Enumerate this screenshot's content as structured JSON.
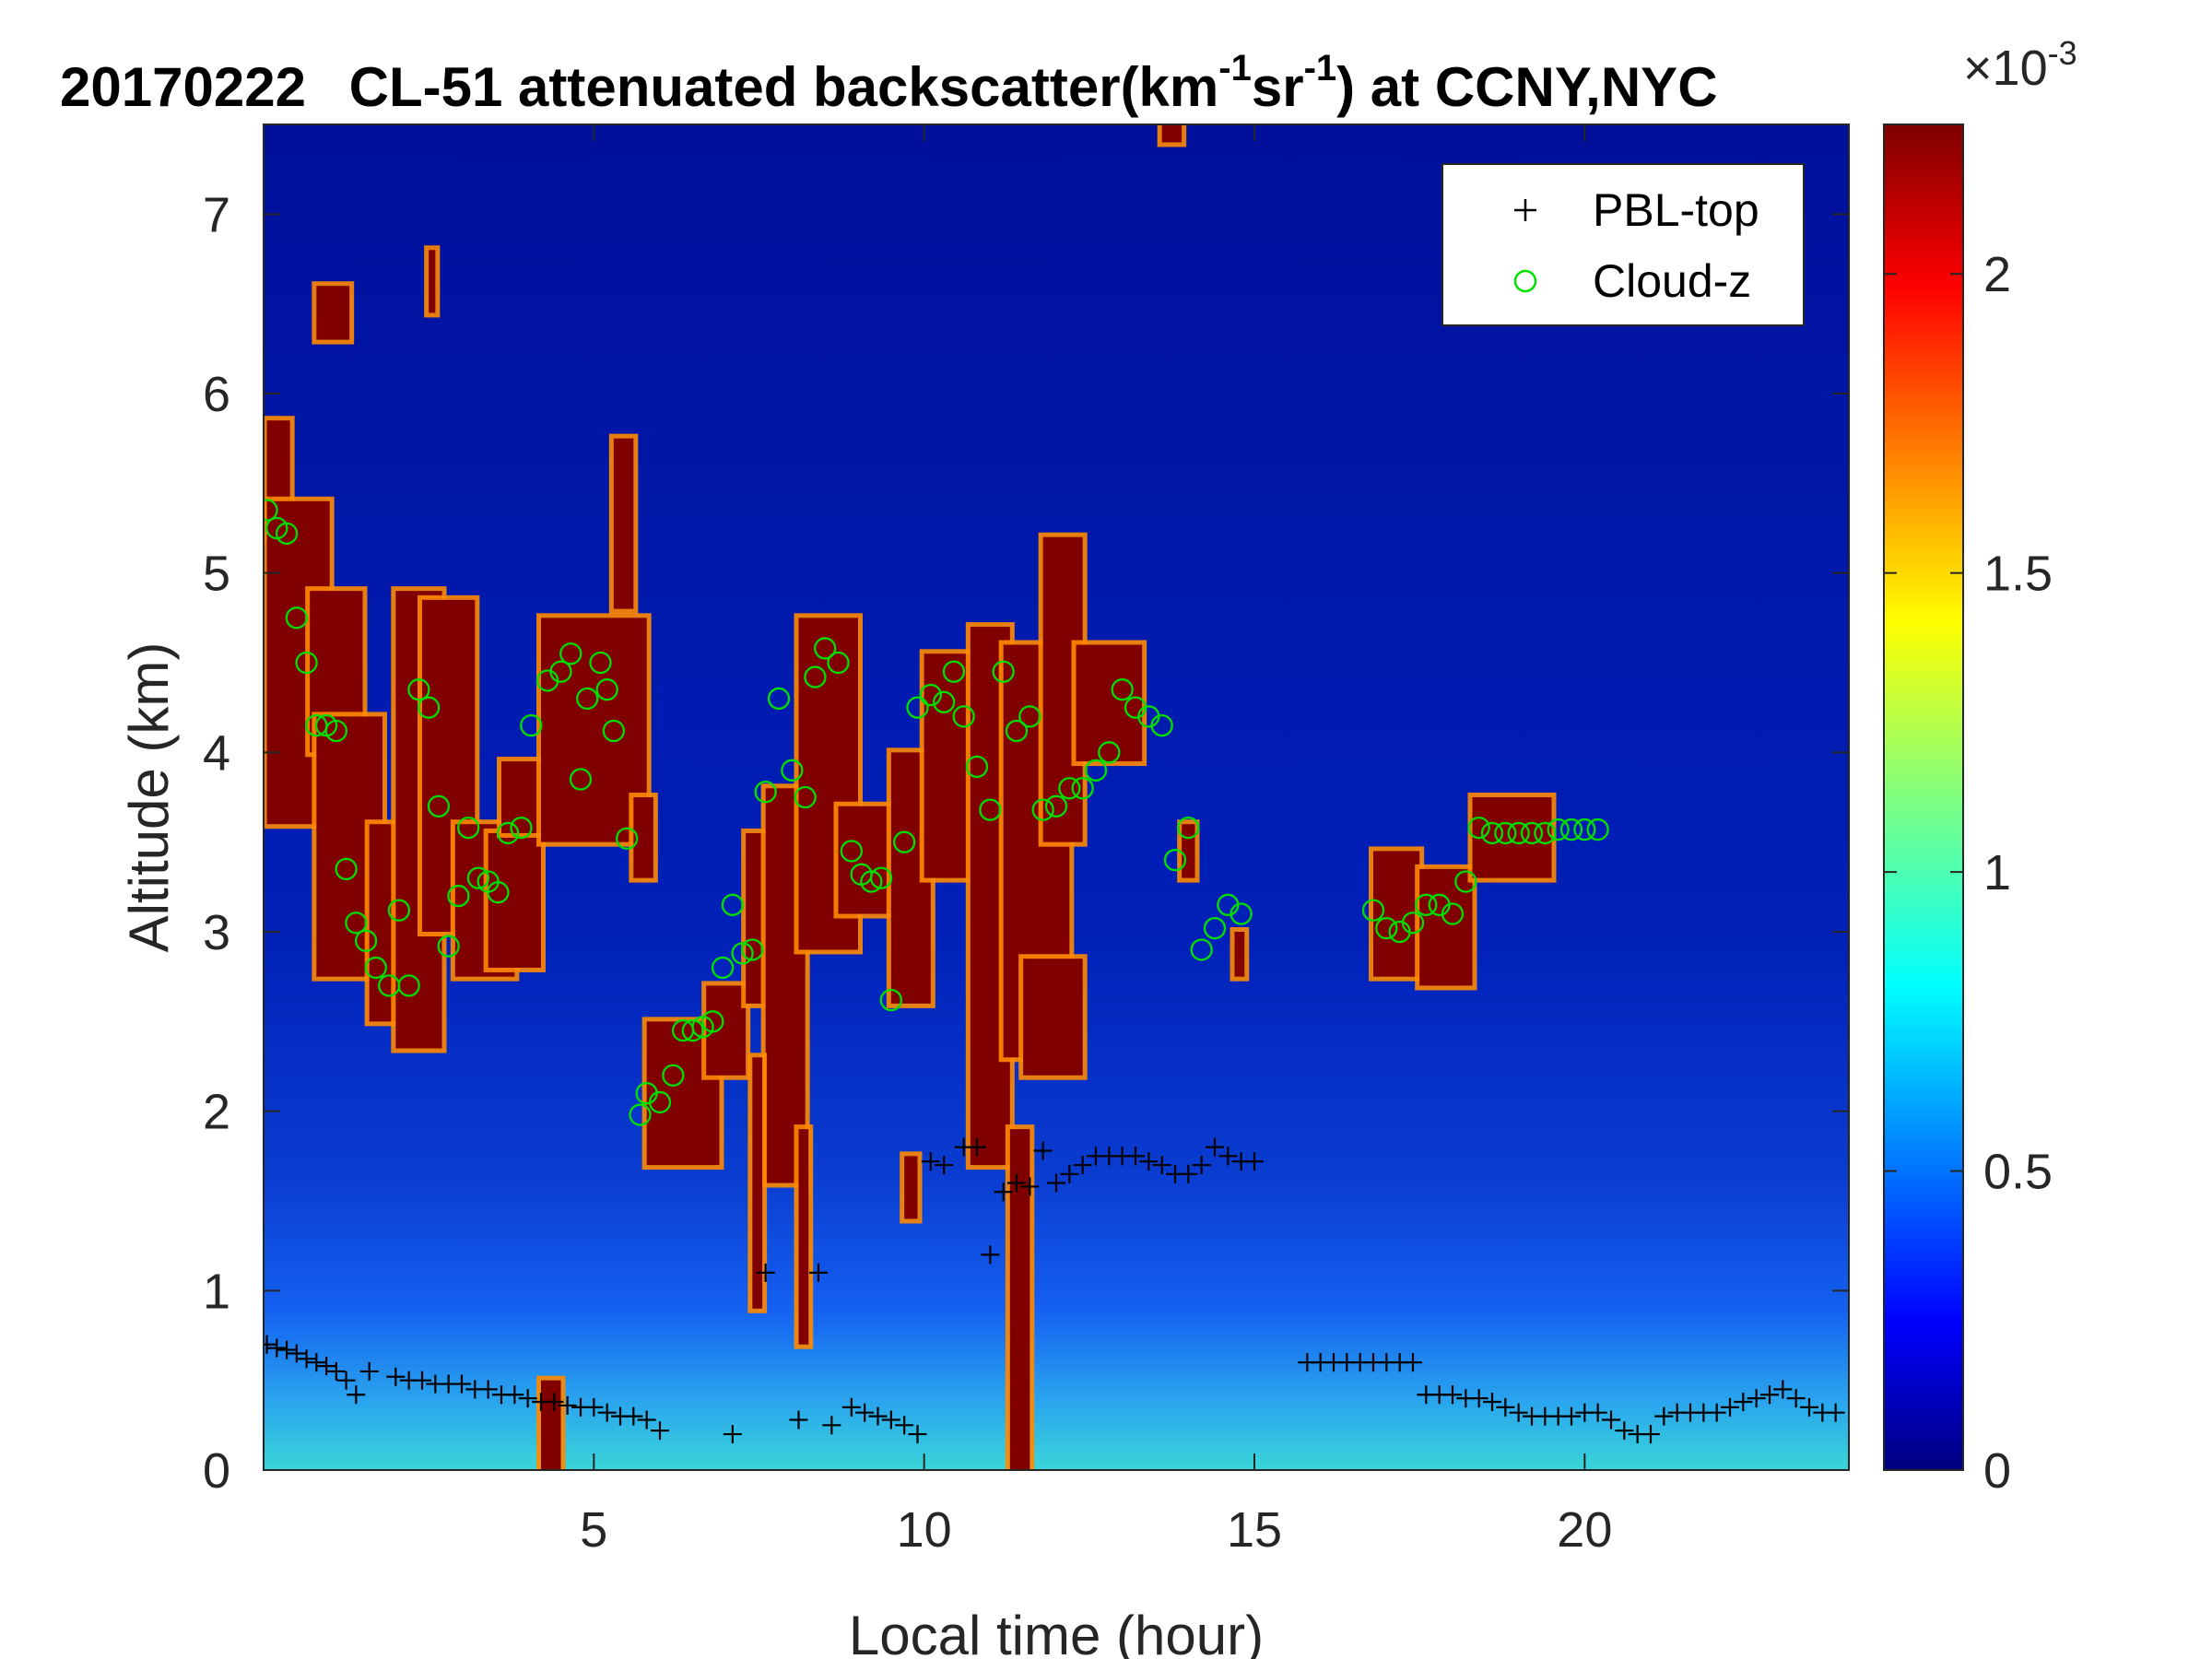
{
  "chart_data": {
    "type": "heatmap",
    "title": {
      "date": "20170222",
      "main": "CL-51 attenuated backscatter(km",
      "sup1": "-1",
      "mid": "sr",
      "sup2": "-1",
      "end": ") at CCNY,NYC"
    },
    "xlabel": "Local time (hour)",
    "ylabel": "Altitude (km)",
    "xlim": [
      0,
      24
    ],
    "ylim": [
      0,
      7.5
    ],
    "xticks": [
      "5",
      "10",
      "15",
      "20"
    ],
    "yticks": [
      "0",
      "1",
      "2",
      "3",
      "4",
      "5",
      "6",
      "7"
    ],
    "colorbar": {
      "min": 0,
      "max": 0.00225,
      "ticks": [
        "0",
        "0.5",
        "1",
        "1.5",
        "2"
      ],
      "exponent_label": "×10",
      "exponent": "-3",
      "colormap": "jet"
    },
    "legend": {
      "position": "top-right",
      "items": [
        {
          "label": "PBL-top",
          "marker": "+",
          "color": "#000000"
        },
        {
          "label": "Cloud-z",
          "marker": "o",
          "color": "#00e000"
        }
      ]
    },
    "cloud_blocks": [
      {
        "x0": 0.05,
        "x1": 0.4,
        "y0": 5.2,
        "y1": 5.85
      },
      {
        "x0": 0.05,
        "x1": 1.0,
        "y0": 3.6,
        "y1": 5.4
      },
      {
        "x0": 0.7,
        "x1": 1.5,
        "y0": 4.0,
        "y1": 4.9
      },
      {
        "x0": 0.8,
        "x1": 1.8,
        "y0": 2.75,
        "y1": 4.2
      },
      {
        "x0": 0.8,
        "x1": 1.3,
        "y0": 6.3,
        "y1": 6.6
      },
      {
        "x0": 1.6,
        "x1": 2.3,
        "y0": 2.5,
        "y1": 3.6
      },
      {
        "x0": 2.0,
        "x1": 2.7,
        "y0": 2.35,
        "y1": 4.9
      },
      {
        "x0": 2.4,
        "x1": 3.2,
        "y0": 3.0,
        "y1": 4.85
      },
      {
        "x0": 2.5,
        "x1": 2.6,
        "y0": 6.45,
        "y1": 6.8
      },
      {
        "x0": 2.9,
        "x1": 3.8,
        "y0": 2.75,
        "y1": 3.6
      },
      {
        "x0": 3.4,
        "x1": 4.2,
        "y0": 2.8,
        "y1": 3.55
      },
      {
        "x0": 3.6,
        "x1": 4.2,
        "y0": 3.55,
        "y1": 3.95
      },
      {
        "x0": 4.2,
        "x1": 4.5,
        "y0": 0.0,
        "y1": 0.5
      },
      {
        "x0": 4.2,
        "x1": 5.8,
        "y0": 3.5,
        "y1": 4.75
      },
      {
        "x0": 5.3,
        "x1": 5.6,
        "y0": 4.8,
        "y1": 5.75
      },
      {
        "x0": 5.6,
        "x1": 5.9,
        "y0": 3.3,
        "y1": 3.75
      },
      {
        "x0": 5.8,
        "x1": 6.9,
        "y0": 1.7,
        "y1": 2.5
      },
      {
        "x0": 6.7,
        "x1": 7.3,
        "y0": 2.2,
        "y1": 2.7
      },
      {
        "x0": 7.3,
        "x1": 7.7,
        "y0": 2.6,
        "y1": 3.55
      },
      {
        "x0": 7.6,
        "x1": 8.2,
        "y0": 1.6,
        "y1": 3.8
      },
      {
        "x0": 8.1,
        "x1": 9.0,
        "y0": 2.9,
        "y1": 4.75
      },
      {
        "x0": 8.7,
        "x1": 9.6,
        "y0": 3.1,
        "y1": 3.7
      },
      {
        "x0": 9.5,
        "x1": 10.1,
        "y0": 2.6,
        "y1": 4.0
      },
      {
        "x0": 10.0,
        "x1": 10.7,
        "y0": 3.3,
        "y1": 4.55
      },
      {
        "x0": 10.7,
        "x1": 11.3,
        "y0": 1.7,
        "y1": 4.7
      },
      {
        "x0": 11.2,
        "x1": 12.2,
        "y0": 2.3,
        "y1": 4.6
      },
      {
        "x0": 11.8,
        "x1": 12.4,
        "y0": 3.5,
        "y1": 5.2
      },
      {
        "x0": 12.3,
        "x1": 13.3,
        "y0": 3.95,
        "y1": 4.6
      },
      {
        "x0": 11.5,
        "x1": 12.4,
        "y0": 2.2,
        "y1": 2.85
      },
      {
        "x0": 9.7,
        "x1": 9.9,
        "y0": 1.4,
        "y1": 1.75
      },
      {
        "x0": 11.3,
        "x1": 11.6,
        "y0": 0.0,
        "y1": 1.9
      },
      {
        "x0": 7.4,
        "x1": 7.55,
        "y0": 0.9,
        "y1": 2.3
      },
      {
        "x0": 8.1,
        "x1": 8.25,
        "y0": 0.7,
        "y1": 1.9
      },
      {
        "x0": 13.6,
        "x1": 13.9,
        "y0": 7.4,
        "y1": 7.5
      },
      {
        "x0": 13.9,
        "x1": 14.1,
        "y0": 3.3,
        "y1": 3.6
      },
      {
        "x0": 14.7,
        "x1": 14.85,
        "y0": 2.75,
        "y1": 3.0
      },
      {
        "x0": 16.8,
        "x1": 17.5,
        "y0": 2.75,
        "y1": 3.45
      },
      {
        "x0": 17.5,
        "x1": 18.3,
        "y0": 2.7,
        "y1": 3.35
      },
      {
        "x0": 18.3,
        "x1": 19.5,
        "y0": 3.3,
        "y1": 3.75
      }
    ],
    "cloud_z": {
      "x": [
        0.05,
        0.2,
        0.35,
        0.5,
        0.65,
        0.8,
        0.95,
        1.1,
        1.25,
        1.4,
        1.55,
        1.7,
        1.9,
        2.05,
        2.2,
        2.35,
        2.5,
        2.65,
        2.8,
        2.95,
        3.1,
        3.25,
        3.4,
        3.55,
        3.7,
        3.9,
        4.05,
        4.3,
        4.5,
        4.65,
        4.8,
        4.9,
        5.1,
        5.2,
        5.3,
        5.5,
        5.7,
        5.8,
        6.0,
        6.2,
        6.35,
        6.5,
        6.65,
        6.8,
        6.95,
        7.1,
        7.25,
        7.4,
        7.6,
        7.8,
        8.0,
        8.2,
        8.35,
        8.5,
        8.7,
        8.9,
        9.05,
        9.2,
        9.35,
        9.5,
        9.7,
        9.9,
        10.1,
        10.3,
        10.45,
        10.6,
        10.8,
        11.0,
        11.2,
        11.4,
        11.6,
        11.8,
        12.0,
        12.2,
        12.4,
        12.6,
        12.8,
        13.0,
        13.2,
        13.4,
        13.6,
        13.8,
        14.0,
        14.2,
        14.4,
        14.6,
        14.8,
        16.8,
        17.0,
        17.2,
        17.4,
        17.6,
        17.8,
        18.0,
        18.2,
        18.4,
        18.6,
        18.8,
        19.0,
        19.2,
        19.4,
        19.6,
        19.8,
        20.0,
        20.2
      ],
      "y": [
        5.35,
        5.25,
        5.22,
        4.75,
        4.5,
        4.15,
        4.15,
        4.12,
        3.35,
        3.05,
        2.95,
        2.8,
        2.7,
        3.12,
        2.7,
        4.35,
        4.25,
        3.7,
        2.92,
        3.2,
        3.58,
        3.3,
        3.28,
        3.22,
        3.55,
        3.58,
        4.15,
        4.4,
        4.45,
        4.55,
        3.85,
        4.3,
        4.5,
        4.35,
        4.12,
        3.52,
        1.98,
        2.1,
        2.05,
        2.2,
        2.45,
        2.45,
        2.47,
        2.5,
        2.8,
        3.15,
        2.88,
        2.9,
        3.78,
        4.3,
        3.9,
        3.75,
        4.42,
        4.58,
        4.5,
        3.45,
        3.32,
        3.28,
        3.3,
        2.62,
        3.5,
        4.25,
        4.32,
        4.28,
        4.45,
        4.2,
        3.92,
        3.68,
        4.45,
        4.12,
        4.2,
        3.68,
        3.7,
        3.8,
        3.8,
        3.9,
        4.0,
        4.35,
        4.25,
        4.2,
        4.15,
        3.4,
        3.58,
        2.9,
        3.02,
        3.15,
        3.1,
        3.12,
        3.02,
        3.0,
        3.05,
        3.15,
        3.15,
        3.1,
        3.28,
        3.58,
        3.55,
        3.55,
        3.55,
        3.55,
        3.55,
        3.57,
        3.57,
        3.57,
        3.57
      ]
    },
    "pbl_top": {
      "x": [
        0.05,
        0.2,
        0.35,
        0.5,
        0.65,
        0.8,
        0.95,
        1.1,
        1.25,
        1.4,
        1.6,
        2.0,
        2.2,
        2.4,
        2.6,
        2.8,
        3.0,
        3.2,
        3.4,
        3.6,
        3.8,
        4.0,
        4.2,
        4.4,
        4.6,
        4.8,
        5.0,
        5.2,
        5.4,
        5.6,
        5.8,
        6.0,
        7.1,
        7.6,
        8.1,
        8.4,
        8.6,
        8.9,
        9.1,
        9.3,
        9.5,
        9.7,
        9.9,
        10.1,
        10.3,
        10.6,
        10.8,
        11.0,
        11.2,
        11.4,
        11.6,
        11.8,
        12.0,
        12.2,
        12.4,
        12.6,
        12.8,
        13.0,
        13.2,
        13.4,
        13.6,
        13.8,
        14.0,
        14.2,
        14.4,
        14.6,
        14.8,
        15.0,
        15.8,
        16.0,
        16.2,
        16.4,
        16.6,
        16.8,
        17.0,
        17.2,
        17.4,
        17.6,
        17.8,
        18.0,
        18.2,
        18.4,
        18.6,
        18.8,
        19.0,
        19.2,
        19.4,
        19.6,
        19.8,
        20.0,
        20.2,
        20.4,
        20.6,
        20.8,
        21.0,
        21.2,
        21.4,
        21.6,
        21.8,
        22.0,
        22.2,
        22.4,
        22.6,
        22.8,
        23.0,
        23.2,
        23.4,
        23.6,
        23.8
      ],
      "y": [
        0.7,
        0.68,
        0.67,
        0.65,
        0.62,
        0.6,
        0.58,
        0.55,
        0.5,
        0.42,
        0.55,
        0.52,
        0.5,
        0.5,
        0.48,
        0.48,
        0.48,
        0.45,
        0.45,
        0.42,
        0.42,
        0.4,
        0.38,
        0.38,
        0.36,
        0.35,
        0.35,
        0.32,
        0.3,
        0.3,
        0.28,
        0.22,
        0.2,
        1.1,
        0.28,
        1.1,
        0.25,
        0.35,
        0.32,
        0.3,
        0.28,
        0.25,
        0.2,
        1.72,
        1.7,
        1.8,
        1.8,
        1.2,
        1.55,
        1.6,
        1.58,
        1.78,
        1.6,
        1.65,
        1.7,
        1.75,
        1.75,
        1.75,
        1.75,
        1.72,
        1.7,
        1.65,
        1.65,
        1.7,
        1.8,
        1.75,
        1.72,
        1.72,
        0.6,
        0.6,
        0.6,
        0.6,
        0.6,
        0.6,
        0.6,
        0.6,
        0.6,
        0.42,
        0.42,
        0.42,
        0.4,
        0.4,
        0.38,
        0.35,
        0.32,
        0.3,
        0.3,
        0.3,
        0.3,
        0.32,
        0.32,
        0.28,
        0.22,
        0.2,
        0.2,
        0.3,
        0.32,
        0.32,
        0.32,
        0.32,
        0.35,
        0.38,
        0.4,
        0.42,
        0.45,
        0.4,
        0.35,
        0.32,
        0.32
      ]
    }
  }
}
